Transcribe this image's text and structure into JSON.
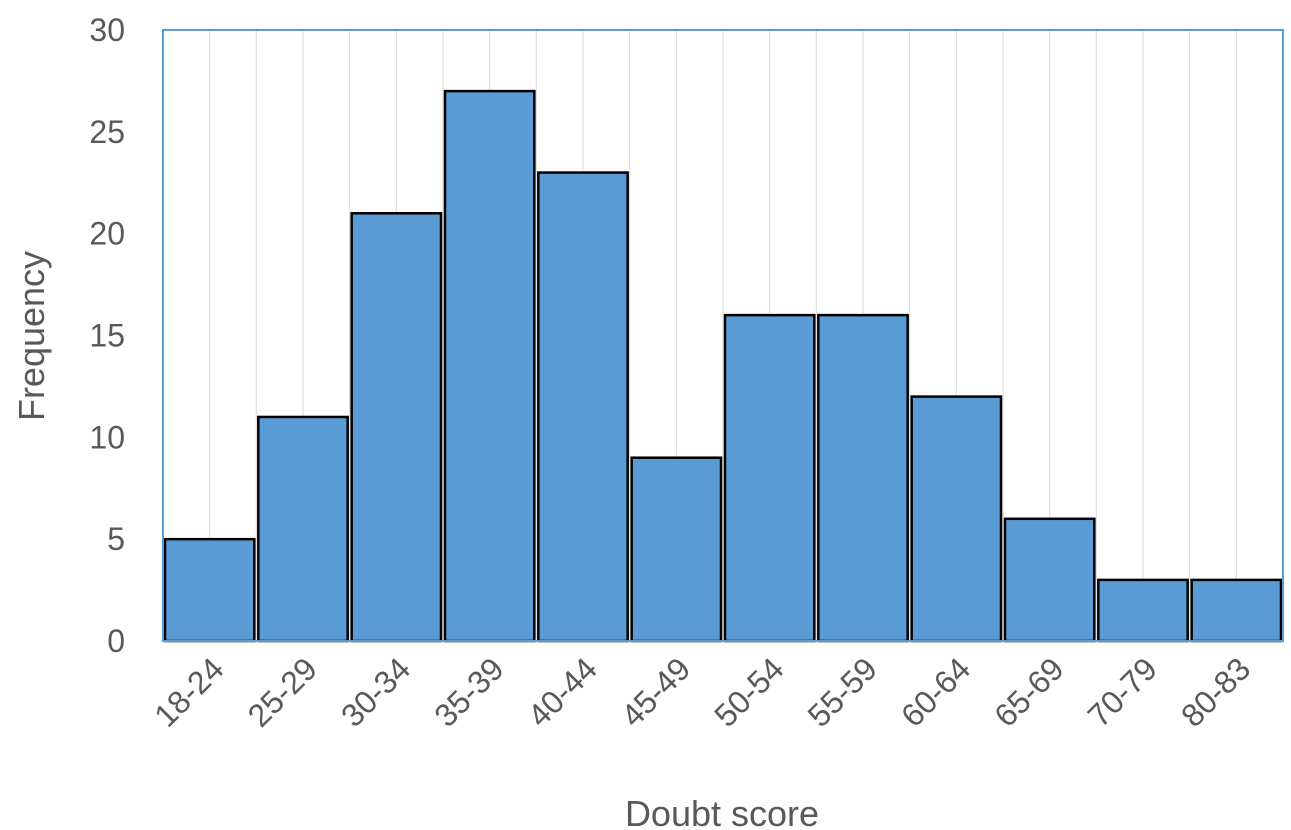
{
  "chart_data": {
    "type": "bar",
    "xlabel": "Doubt score",
    "ylabel": "Frequency",
    "categories": [
      "18-24",
      "25-29",
      "30-34",
      "35-39",
      "40-44",
      "45-49",
      "50-54",
      "55-59",
      "60-64",
      "65-69",
      "70-79",
      "80-83"
    ],
    "values": [
      5,
      11,
      21,
      27,
      23,
      9,
      16,
      16,
      12,
      6,
      3,
      3
    ],
    "ylim": [
      0,
      30
    ],
    "yticks": [
      0,
      5,
      10,
      15,
      20,
      25,
      30
    ],
    "grid": "vertical",
    "legend": "none",
    "colors": {
      "bar_fill": "#5b9bd5",
      "bar_stroke": "#000000",
      "plot_border": "#5b9bd5",
      "grid": "#d9d9d9",
      "text": "#595959"
    }
  }
}
